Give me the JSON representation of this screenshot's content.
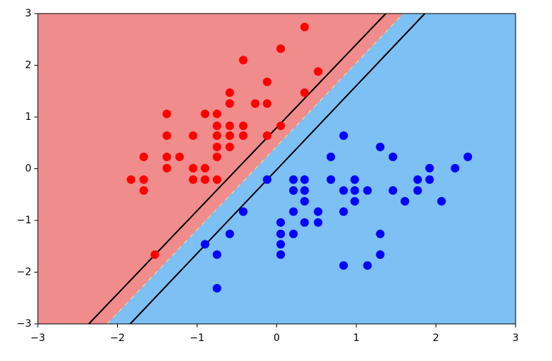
{
  "chart_data": {
    "type": "scatter",
    "xlim": [
      -3,
      3
    ],
    "ylim": [
      -3,
      3
    ],
    "xticks": [
      {
        "value": -3,
        "label": "−3"
      },
      {
        "value": -2,
        "label": "−2"
      },
      {
        "value": -1,
        "label": "−1"
      },
      0,
      1,
      2,
      3
    ],
    "yticks": [
      {
        "value": -3,
        "label": "−3"
      },
      {
        "value": -2,
        "label": "−2"
      },
      {
        "value": -1,
        "label": "−1"
      },
      0,
      1,
      2,
      3
    ],
    "region_colors": [
      "#f08c8c",
      "#7dc0f4"
    ],
    "decision_boundary": {
      "color": "#f0e68c",
      "x": [
        -2.13,
        1.59
      ],
      "y": [
        -3,
        3
      ]
    },
    "margin_lines": [
      {
        "color": "#000000",
        "x": [
          -2.36,
          1.37
        ],
        "y": [
          -3,
          3
        ]
      },
      {
        "color": "#000000",
        "x": [
          -1.84,
          1.86
        ],
        "y": [
          -3,
          3
        ]
      }
    ],
    "series": [
      {
        "color": "#ff0000",
        "x": [
          0.35,
          0.05,
          -0.42,
          0.52,
          -0.12,
          -0.59,
          0.35,
          -0.59,
          -0.27,
          -0.12,
          -1.38,
          -0.9,
          -0.75,
          -0.75,
          -0.59,
          -0.42,
          0.05,
          -1.38,
          -1.05,
          -0.75,
          -0.59,
          -0.42,
          -0.12,
          -0.75,
          -0.59,
          -1.67,
          -1.38,
          -1.22,
          -0.75,
          -1.38,
          -1.05,
          -0.9,
          -1.83,
          -1.67,
          -1.05,
          -0.9,
          -0.75,
          -1.67,
          -1.53
        ],
        "y": [
          2.74,
          2.32,
          2.1,
          1.88,
          1.68,
          1.47,
          1.47,
          1.26,
          1.26,
          1.26,
          1.06,
          1.06,
          1.06,
          0.83,
          0.83,
          0.83,
          0.83,
          0.64,
          0.64,
          0.64,
          0.64,
          0.64,
          0.64,
          0.42,
          0.42,
          0.23,
          0.23,
          0.23,
          0.23,
          0.01,
          0.01,
          0.01,
          -0.21,
          -0.21,
          -0.21,
          -0.21,
          -0.21,
          -0.42,
          -1.66
        ]
      },
      {
        "color": "#0000ff",
        "x": [
          0.84,
          1.3,
          0.68,
          1.46,
          2.4,
          1.92,
          2.24,
          -0.12,
          0.21,
          0.35,
          0.68,
          0.98,
          1.77,
          1.92,
          0.21,
          0.35,
          0.84,
          0.98,
          1.14,
          1.46,
          1.77,
          0.35,
          0.98,
          1.61,
          2.07,
          -0.42,
          0.21,
          0.52,
          0.84,
          0.05,
          0.35,
          0.52,
          -0.59,
          0.05,
          0.21,
          1.3,
          -0.9,
          0.05,
          -0.75,
          0.05,
          1.3,
          0.84,
          1.14,
          -0.75
        ],
        "y": [
          0.64,
          0.42,
          0.23,
          0.23,
          0.23,
          0.01,
          0.01,
          -0.21,
          -0.21,
          -0.21,
          -0.21,
          -0.21,
          -0.21,
          -0.21,
          -0.42,
          -0.42,
          -0.42,
          -0.42,
          -0.42,
          -0.42,
          -0.42,
          -0.63,
          -0.63,
          -0.63,
          -0.63,
          -0.83,
          -0.83,
          -0.83,
          -0.83,
          -1.04,
          -1.04,
          -1.04,
          -1.26,
          -1.26,
          -1.26,
          -1.26,
          -1.46,
          -1.46,
          -1.66,
          -1.66,
          -1.66,
          -1.87,
          -1.87,
          -2.31
        ]
      }
    ]
  }
}
